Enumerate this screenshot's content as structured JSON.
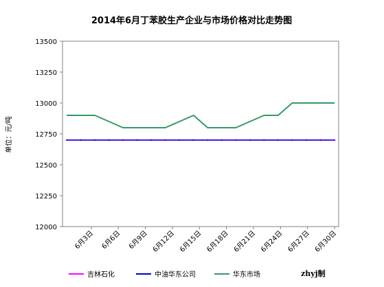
{
  "chart_data": {
    "type": "line",
    "title": "2014年6月丁苯胶生产企业与市场价格对比走势图",
    "ylabel": "单位：元/吨",
    "xlabel": "",
    "ylim": [
      12000,
      13500
    ],
    "yticks": [
      12000,
      12250,
      12500,
      12750,
      13000,
      13250,
      13500
    ],
    "grid": false,
    "legend_position": "bottom",
    "x": [
      "6月3日",
      "6月4日",
      "6月5日",
      "6月6日",
      "6月9日",
      "6月10日",
      "6月11日",
      "6月12日",
      "6月13日",
      "6月16日",
      "6月17日",
      "6月18日",
      "6月19日",
      "6月20日",
      "6月23日",
      "6月24日",
      "6月25日",
      "6月26日",
      "6月27日",
      "6月30日"
    ],
    "xtick_labels": [
      "6月3日",
      "6月6日",
      "6月9日",
      "6月12日",
      "6月15日",
      "6月18日",
      "6月21日",
      "6月24日",
      "6月27日",
      "6月30日"
    ],
    "series": [
      {
        "name": "吉林石化",
        "color": "#ff00ff",
        "values": [
          12700,
          12700,
          12700,
          12700,
          12700,
          12700,
          12700,
          12700,
          12700,
          12700,
          12700,
          12700,
          12700,
          12700,
          12700,
          12700,
          12700,
          12700,
          12700,
          12700
        ]
      },
      {
        "name": "中油华东公司",
        "color": "#0000cc",
        "values": [
          12700,
          12700,
          12700,
          12700,
          12700,
          12700,
          12700,
          12700,
          12700,
          12700,
          12700,
          12700,
          12700,
          12700,
          12700,
          12700,
          12700,
          12700,
          12700,
          12700
        ]
      },
      {
        "name": "华东市场",
        "color": "#339966",
        "values": [
          12900,
          12900,
          12900,
          12850,
          12800,
          12800,
          12800,
          12800,
          12850,
          12900,
          12800,
          12800,
          12800,
          12850,
          12900,
          12900,
          13000,
          13000,
          13000,
          13000
        ]
      }
    ]
  },
  "footer": {
    "credit": "zhyj制"
  }
}
